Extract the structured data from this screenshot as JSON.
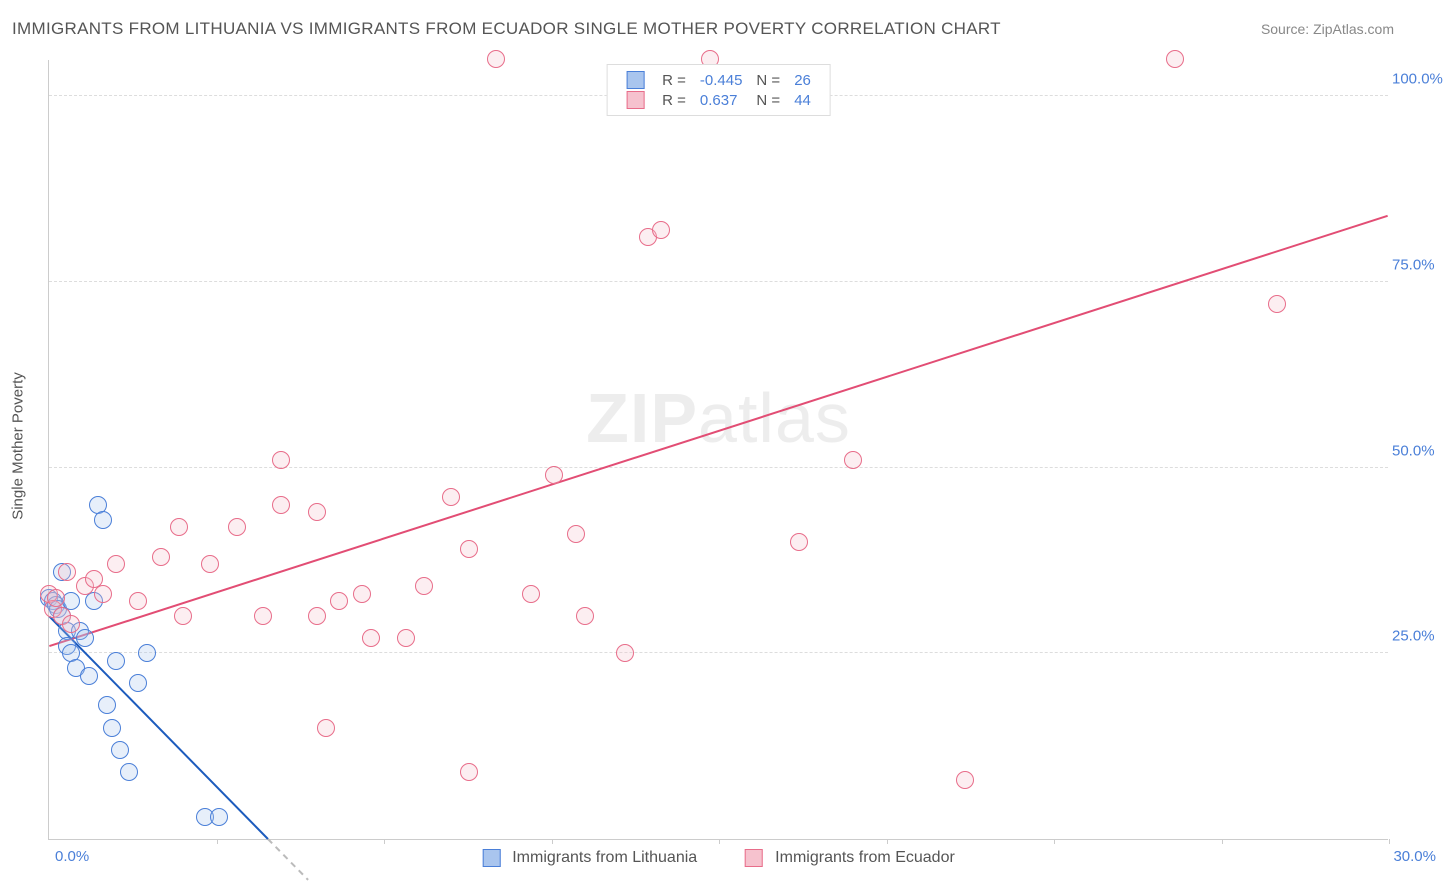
{
  "title": "IMMIGRANTS FROM LITHUANIA VS IMMIGRANTS FROM ECUADOR SINGLE MOTHER POVERTY CORRELATION CHART",
  "source": "Source: ZipAtlas.com",
  "watermark_bold": "ZIP",
  "watermark_light": "atlas",
  "chart": {
    "type": "scatter",
    "y_axis_label": "Single Mother Poverty",
    "xlim": [
      0,
      30
    ],
    "ylim": [
      0,
      105
    ],
    "x_ticks_minor": [
      3.75,
      7.5,
      11.25,
      15,
      18.75,
      22.5,
      26.25,
      30
    ],
    "x_tick_labels": [
      {
        "v": 0,
        "label": "0.0%",
        "pos": "left"
      },
      {
        "v": 30,
        "label": "30.0%",
        "pos": "right"
      }
    ],
    "y_gridlines": [
      25,
      50,
      75,
      100
    ],
    "y_tick_labels": [
      {
        "v": 25,
        "label": "25.0%"
      },
      {
        "v": 50,
        "label": "50.0%"
      },
      {
        "v": 75,
        "label": "75.0%"
      },
      {
        "v": 100,
        "label": "100.0%"
      }
    ],
    "grid_color": "#dddddd",
    "axis_color": "#cccccc",
    "background_color": "#ffffff",
    "tick_label_color": "#4a7fd8",
    "axis_label_color": "#555555",
    "marker_radius": 9,
    "marker_stroke_width": 1.5,
    "marker_fill_opacity": 0.28,
    "series": [
      {
        "name": "Immigrants from Lithuania",
        "color_stroke": "#4a7fd8",
        "color_fill": "#a9c5ee",
        "trend_color": "#1c5bbd",
        "trend_dash_color": "#bbbbbb",
        "R": "-0.445",
        "N": "26",
        "trend": {
          "x1": 0,
          "y1": 30,
          "x2": 4.9,
          "y2": 0,
          "dash_ext_x": 5.8
        },
        "points": [
          [
            0.0,
            32.5
          ],
          [
            0.1,
            32
          ],
          [
            0.15,
            31.5
          ],
          [
            0.2,
            31
          ],
          [
            0.3,
            30
          ],
          [
            0.3,
            36
          ],
          [
            0.4,
            28
          ],
          [
            0.4,
            26
          ],
          [
            0.5,
            25
          ],
          [
            0.5,
            32
          ],
          [
            0.6,
            23
          ],
          [
            0.7,
            28
          ],
          [
            0.8,
            27
          ],
          [
            0.9,
            22
          ],
          [
            1.0,
            32
          ],
          [
            1.1,
            45
          ],
          [
            1.2,
            43
          ],
          [
            1.3,
            18
          ],
          [
            1.4,
            15
          ],
          [
            1.5,
            24
          ],
          [
            1.6,
            12
          ],
          [
            1.8,
            9
          ],
          [
            2.0,
            21
          ],
          [
            2.2,
            25
          ],
          [
            3.5,
            3
          ],
          [
            3.8,
            3
          ]
        ]
      },
      {
        "name": "Immigrants from Ecuador",
        "color_stroke": "#e86d8a",
        "color_fill": "#f6c2ce",
        "trend_color": "#e24d74",
        "R": "0.637",
        "N": "44",
        "trend": {
          "x1": 0,
          "y1": 26,
          "x2": 30,
          "y2": 84
        },
        "points": [
          [
            0.0,
            33
          ],
          [
            0.1,
            31
          ],
          [
            0.15,
            32.5
          ],
          [
            0.3,
            30
          ],
          [
            0.4,
            36
          ],
          [
            0.5,
            29
          ],
          [
            0.8,
            34
          ],
          [
            1.0,
            35
          ],
          [
            1.2,
            33
          ],
          [
            1.5,
            37
          ],
          [
            2.0,
            32
          ],
          [
            2.5,
            38
          ],
          [
            2.9,
            42
          ],
          [
            3.0,
            30
          ],
          [
            3.6,
            37
          ],
          [
            4.2,
            42
          ],
          [
            4.8,
            30
          ],
          [
            5.2,
            45
          ],
          [
            5.2,
            51
          ],
          [
            6.0,
            30
          ],
          [
            6.0,
            44
          ],
          [
            6.2,
            15
          ],
          [
            6.5,
            32
          ],
          [
            7.0,
            33
          ],
          [
            7.2,
            27
          ],
          [
            8.0,
            27
          ],
          [
            8.4,
            34
          ],
          [
            9.0,
            46
          ],
          [
            9.4,
            39
          ],
          [
            9.4,
            9
          ],
          [
            10.0,
            105
          ],
          [
            10.8,
            33
          ],
          [
            11.3,
            49
          ],
          [
            11.8,
            41
          ],
          [
            12.0,
            30
          ],
          [
            12.9,
            25
          ],
          [
            13.4,
            81
          ],
          [
            13.7,
            82
          ],
          [
            14.8,
            105
          ],
          [
            16.8,
            40
          ],
          [
            18.0,
            51
          ],
          [
            20.5,
            8
          ],
          [
            25.2,
            105
          ],
          [
            27.5,
            72
          ]
        ]
      }
    ]
  },
  "legend_top": {
    "R_label": "R =",
    "N_label": "N ="
  }
}
